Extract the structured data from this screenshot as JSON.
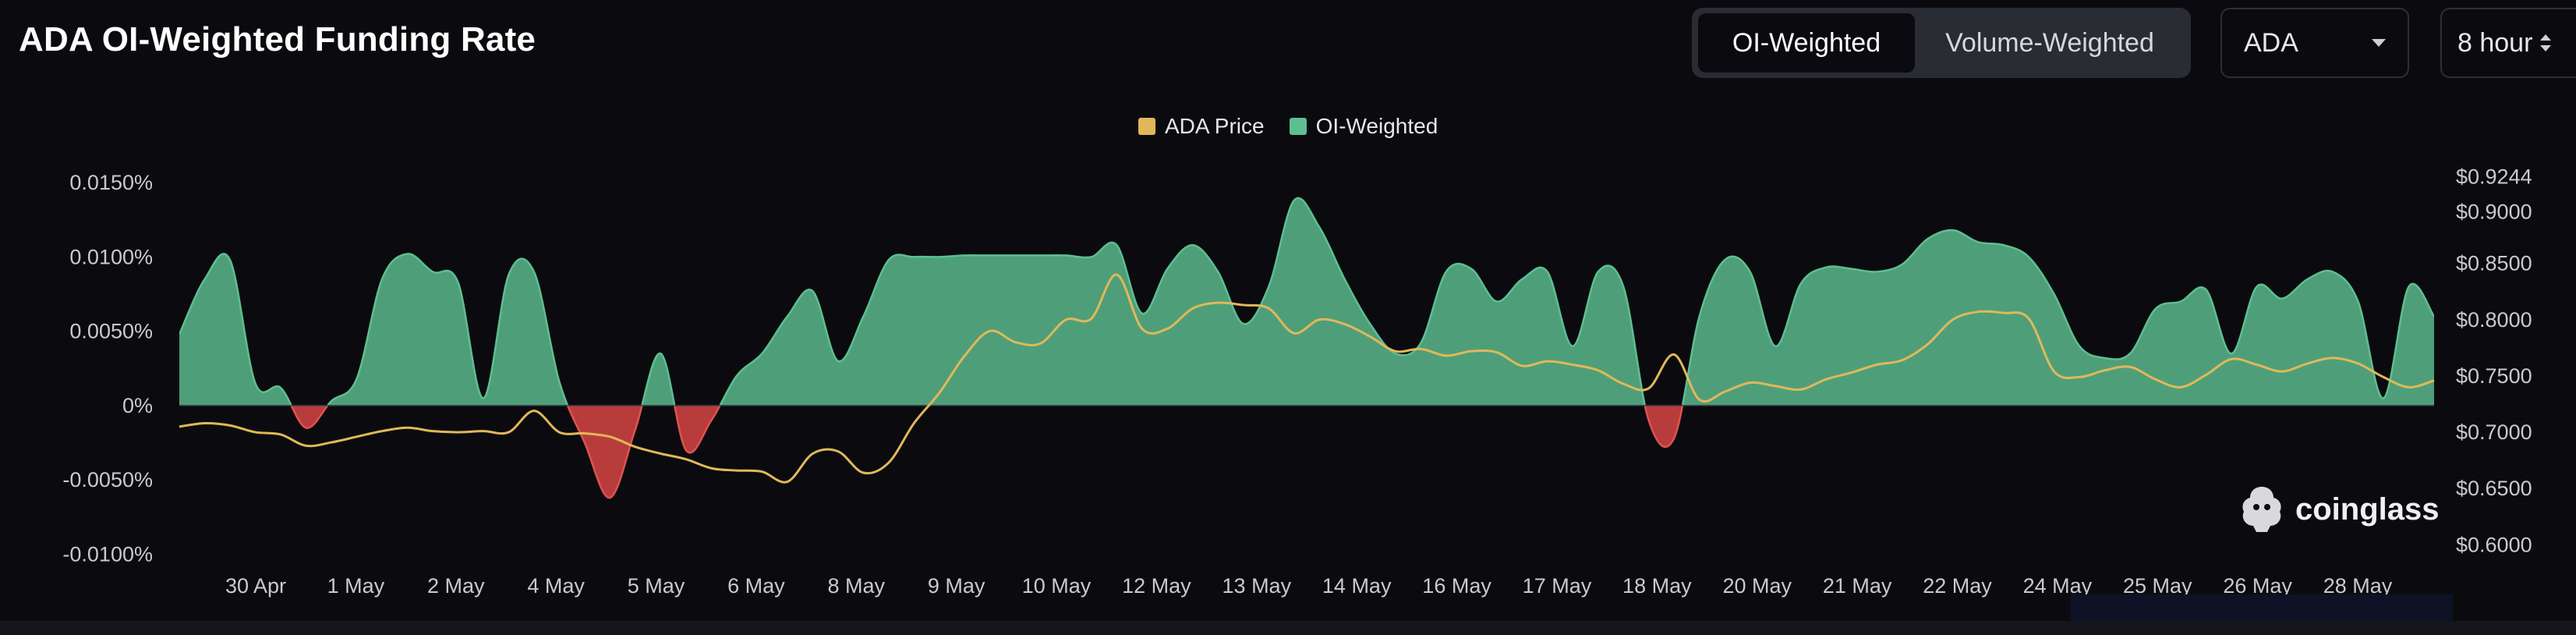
{
  "header": {
    "title": "ADA OI-Weighted Funding Rate",
    "toggle_oi": "OI-Weighted",
    "toggle_volume": "Volume-Weighted",
    "coin_select": "ADA",
    "interval_select": "8 hour"
  },
  "brand": {
    "name": "coinglass"
  },
  "colors": {
    "positive": "#5dbf91",
    "negative": "#c8413f",
    "price": "#e0b85a",
    "axis_text": "#c9cad0",
    "zero_line": "#3a3c44"
  },
  "chart_data": {
    "type": "area",
    "legend": [
      "ADA Price",
      "OI-Weighted"
    ],
    "legend_placement": "top-center",
    "grid": false,
    "x_tick_labels": [
      "30 Apr",
      "1 May",
      "2 May",
      "4 May",
      "5 May",
      "6 May",
      "8 May",
      "9 May",
      "10 May",
      "12 May",
      "13 May",
      "14 May",
      "16 May",
      "17 May",
      "18 May",
      "20 May",
      "21 May",
      "22 May",
      "24 May",
      "25 May",
      "26 May",
      "28 May"
    ],
    "y_left": {
      "ticks": [
        "0.0150%",
        "0.0100%",
        "0.0050%",
        "0%",
        "-0.0050%",
        "-0.0100%"
      ],
      "tick_values": [
        0.015,
        0.01,
        0.005,
        0,
        -0.005,
        -0.01
      ],
      "range": [
        -0.0105,
        0.016
      ]
    },
    "y_right": {
      "ticks": [
        "$0.9244",
        "$0.9000",
        "$0.8500",
        "$0.8000",
        "$0.7500",
        "$0.7000",
        "$0.6500",
        "$0.6000"
      ],
      "tick_values": [
        0.9244,
        0.9,
        0.85,
        0.8,
        0.75,
        0.7,
        0.65,
        0.6
      ],
      "range": [
        0.585,
        0.935
      ]
    },
    "x_range": [
      0,
      89
    ],
    "series": [
      {
        "name": "OI-Weighted",
        "x": [
          0,
          1,
          2,
          3,
          4,
          5,
          6,
          7,
          8,
          9,
          10,
          11,
          12,
          13,
          14,
          15,
          16,
          17,
          18,
          19,
          20,
          21,
          22,
          23,
          24,
          25,
          26,
          27,
          28,
          29,
          30,
          31,
          32,
          33,
          34,
          35,
          36,
          37,
          38,
          39,
          40,
          41,
          42,
          43,
          44,
          45,
          46,
          47,
          48,
          49,
          50,
          51,
          52,
          53,
          54,
          55,
          56,
          57,
          58,
          59,
          60,
          61,
          62,
          63,
          64,
          65,
          66,
          67,
          68,
          69,
          70,
          71,
          72,
          73,
          74,
          75,
          76,
          77,
          78,
          79,
          80,
          81,
          82,
          83,
          84,
          85,
          86,
          87,
          88,
          89
        ],
        "values": [
          0.0048,
          0.0085,
          0.0098,
          0.0015,
          0.0012,
          -0.0015,
          0.0003,
          0.0018,
          0.0085,
          0.0102,
          0.009,
          0.0083,
          0.0005,
          0.0088,
          0.009,
          0.0016,
          -0.0025,
          -0.0062,
          -0.0016,
          0.0035,
          -0.003,
          -0.001,
          0.002,
          0.0035,
          0.006,
          0.0077,
          0.003,
          0.006,
          0.0098,
          0.01,
          0.01,
          0.0101,
          0.0101,
          0.0101,
          0.0101,
          0.0101,
          0.01,
          0.0108,
          0.0062,
          0.0092,
          0.0108,
          0.009,
          0.0055,
          0.008,
          0.0138,
          0.012,
          0.0085,
          0.0055,
          0.0035,
          0.0042,
          0.009,
          0.0092,
          0.007,
          0.0085,
          0.009,
          0.004,
          0.009,
          0.008,
          -0.001,
          -0.0022,
          0.006,
          0.0098,
          0.009,
          0.004,
          0.0082,
          0.0093,
          0.0092,
          0.009,
          0.0095,
          0.0112,
          0.0118,
          0.011,
          0.0108,
          0.01,
          0.0075,
          0.004,
          0.0032,
          0.0035,
          0.0065,
          0.007,
          0.0078,
          0.0035,
          0.008,
          0.0072,
          0.0085,
          0.009,
          0.007,
          0.0005,
          0.008,
          0.006
        ]
      },
      {
        "name": "ADA Price",
        "x": [
          0,
          1,
          2,
          3,
          4,
          5,
          6,
          7,
          8,
          9,
          10,
          11,
          12,
          13,
          14,
          15,
          16,
          17,
          18,
          19,
          20,
          21,
          22,
          23,
          24,
          25,
          26,
          27,
          28,
          29,
          30,
          31,
          32,
          33,
          34,
          35,
          36,
          37,
          38,
          39,
          40,
          41,
          42,
          43,
          44,
          45,
          46,
          47,
          48,
          49,
          50,
          51,
          52,
          53,
          54,
          55,
          56,
          57,
          58,
          59,
          60,
          61,
          62,
          63,
          64,
          65,
          66,
          67,
          68,
          69,
          70,
          71,
          72,
          73,
          74,
          75,
          76,
          77,
          78,
          79,
          80,
          81,
          82,
          83,
          84,
          85,
          86,
          87,
          88,
          89
        ],
        "values": [
          0.705,
          0.708,
          0.706,
          0.7,
          0.698,
          0.688,
          0.691,
          0.696,
          0.701,
          0.704,
          0.701,
          0.7,
          0.701,
          0.7,
          0.719,
          0.7,
          0.699,
          0.696,
          0.687,
          0.681,
          0.676,
          0.668,
          0.666,
          0.665,
          0.656,
          0.681,
          0.683,
          0.664,
          0.673,
          0.708,
          0.735,
          0.768,
          0.79,
          0.78,
          0.779,
          0.8,
          0.801,
          0.84,
          0.792,
          0.792,
          0.81,
          0.815,
          0.813,
          0.81,
          0.788,
          0.8,
          0.796,
          0.785,
          0.772,
          0.774,
          0.768,
          0.772,
          0.771,
          0.759,
          0.763,
          0.76,
          0.755,
          0.743,
          0.739,
          0.769,
          0.729,
          0.736,
          0.744,
          0.741,
          0.738,
          0.747,
          0.753,
          0.76,
          0.764,
          0.778,
          0.8,
          0.807,
          0.806,
          0.801,
          0.754,
          0.749,
          0.755,
          0.758,
          0.747,
          0.74,
          0.751,
          0.765,
          0.76,
          0.754,
          0.761,
          0.766,
          0.761,
          0.749,
          0.74,
          0.746
        ]
      }
    ]
  }
}
